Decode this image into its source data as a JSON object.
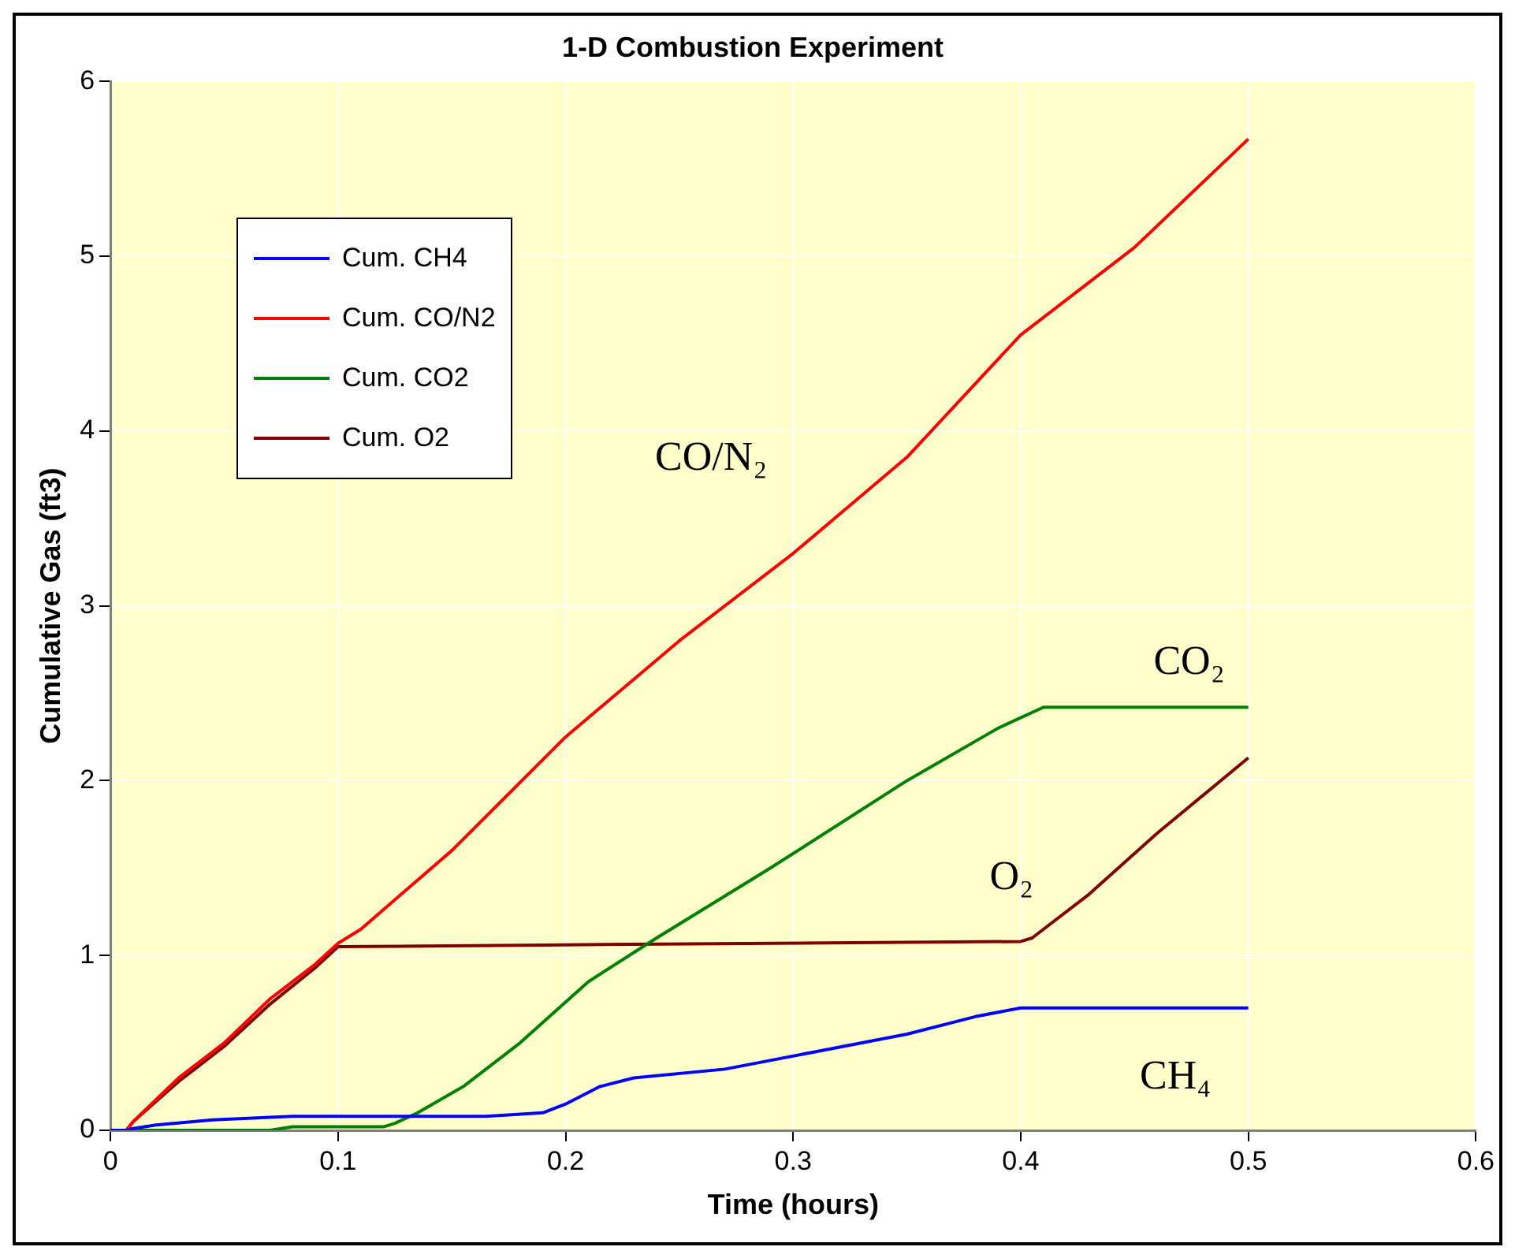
{
  "chart_data": {
    "type": "line",
    "title": "1-D Combustion Experiment",
    "xlabel": "Time (hours)",
    "ylabel": "Cumulative Gas (ft3)",
    "xlim": [
      0,
      0.6
    ],
    "xticks": [
      0,
      0.1,
      0.2,
      0.3,
      0.4,
      0.5,
      0.6
    ],
    "ylim": [
      0,
      6
    ],
    "yticks": [
      0,
      1,
      2,
      3,
      4,
      5,
      6
    ],
    "grid": true,
    "legend": "top left",
    "marker": "none",
    "line_style": "solid",
    "series": [
      {
        "name": "Cum. CH4",
        "color": "#0000ff",
        "x": [
          0,
          0.007,
          0.01,
          0.02,
          0.045,
          0.08,
          0.165,
          0.19,
          0.2,
          0.215,
          0.23,
          0.27,
          0.31,
          0.35,
          0.38,
          0.4,
          0.5
        ],
        "values": [
          0,
          0,
          0.01,
          0.03,
          0.06,
          0.08,
          0.08,
          0.1,
          0.15,
          0.25,
          0.3,
          0.35,
          0.45,
          0.55,
          0.65,
          0.7,
          0.7
        ]
      },
      {
        "name": "Cum. CO/N2",
        "color": "#ff0000",
        "x": [
          0,
          0.007,
          0.01,
          0.03,
          0.05,
          0.07,
          0.09,
          0.1,
          0.11,
          0.15,
          0.2,
          0.25,
          0.3,
          0.35,
          0.4,
          0.45,
          0.5
        ],
        "values": [
          0,
          0,
          0.05,
          0.3,
          0.5,
          0.75,
          0.95,
          1.07,
          1.15,
          1.6,
          2.25,
          2.8,
          3.3,
          3.85,
          4.55,
          5.05,
          5.67
        ]
      },
      {
        "name": "Cum. CO2",
        "color": "#008000",
        "x": [
          0,
          0.07,
          0.08,
          0.12,
          0.125,
          0.135,
          0.155,
          0.18,
          0.21,
          0.24,
          0.29,
          0.35,
          0.39,
          0.41,
          0.5
        ],
        "values": [
          0,
          0,
          0.02,
          0.02,
          0.04,
          0.1,
          0.25,
          0.5,
          0.85,
          1.1,
          1.5,
          2.0,
          2.3,
          2.42,
          2.42
        ]
      },
      {
        "name": "Cum. O2",
        "color": "#800000",
        "x": [
          0,
          0.007,
          0.01,
          0.03,
          0.05,
          0.07,
          0.09,
          0.1,
          0.19,
          0.4,
          0.405,
          0.43,
          0.46,
          0.5
        ],
        "values": [
          0,
          0,
          0.05,
          0.28,
          0.48,
          0.72,
          0.93,
          1.05,
          1.06,
          1.08,
          1.1,
          1.35,
          1.7,
          2.13
        ]
      }
    ],
    "annotations": [
      "CO/N₂",
      "CO₂",
      "O₂",
      "CH₄"
    ]
  }
}
